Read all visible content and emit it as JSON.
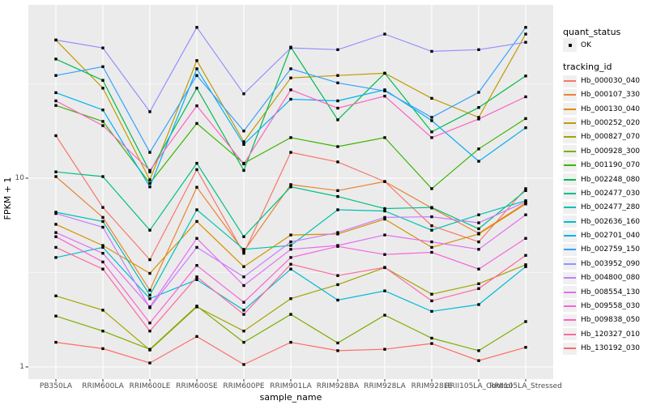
{
  "page": {
    "background": "#FFFFFF"
  },
  "panel": {
    "bg": "#EBEBEB",
    "grid_major": "#FFFFFF",
    "grid_minor": "#FFFFFF",
    "tick_color": "#333333",
    "tick_label_color": "#4D4D4D",
    "marker_color": "#000000",
    "legend_key_bg": "#F0F0F0"
  },
  "chart_data": {
    "type": "line",
    "title": "",
    "xlabel": "sample_name",
    "ylabel": "FPKM + 1",
    "y_scale": "log10",
    "y_major_ticks": [
      1,
      10
    ],
    "y_minor_gridlines": [
      3.162,
      31.62
    ],
    "ylim": [
      0.85,
      75
    ],
    "grid": true,
    "legend_position": "right",
    "x_categories": [
      "PB350LA",
      "RRIM600LA",
      "RRIM600LE",
      "RRIM600SE",
      "RRIM600PE",
      "RRIM901LA",
      "RRIM928BA",
      "RRIM928LA",
      "RRIM928LE",
      "RRII105LA_Control",
      "RRII105LA_Stressed"
    ],
    "legend": {
      "quant_status_title": "quant_status",
      "quant_status_items": [
        {
          "label": "OK",
          "marker": "black-point"
        }
      ],
      "tracking_title": "tracking_id"
    },
    "series": [
      {
        "name": "Hb_000030_040",
        "color": "#F8766D",
        "values": [
          16.8,
          7.0,
          3.7,
          11.1,
          4.0,
          13.7,
          12.2,
          9.6,
          5.6,
          4.6,
          8.8
        ]
      },
      {
        "name": "Hb_000107_330",
        "color": "#EA8331",
        "values": [
          10.2,
          6.2,
          2.55,
          8.95,
          4.1,
          9.25,
          8.6,
          9.6,
          6.95,
          5.1,
          7.4
        ]
      },
      {
        "name": "Hb_000130_040",
        "color": "#D89000",
        "values": [
          5.7,
          4.4,
          3.13,
          5.9,
          3.4,
          5.0,
          5.06,
          6.07,
          4.3,
          5.06,
          7.3
        ]
      },
      {
        "name": "Hb_000252_020",
        "color": "#C09B00",
        "values": [
          54,
          30,
          9.8,
          42,
          15.6,
          34,
          35,
          36,
          26.5,
          21,
          58
        ]
      },
      {
        "name": "Hb_000827_070",
        "color": "#A3A500",
        "values": [
          2.38,
          2.0,
          1.23,
          2.08,
          1.55,
          2.3,
          2.73,
          3.36,
          2.43,
          2.76,
          3.48
        ]
      },
      {
        "name": "Hb_000928_300",
        "color": "#7CAE00",
        "values": [
          1.86,
          1.55,
          1.24,
          2.1,
          1.35,
          1.9,
          1.34,
          1.88,
          1.42,
          1.22,
          1.74
        ]
      },
      {
        "name": "Hb_001190_070",
        "color": "#39B600",
        "values": [
          24.3,
          20,
          9.4,
          19.5,
          12,
          16.4,
          14.7,
          16.4,
          8.8,
          14.3,
          20.7
        ]
      },
      {
        "name": "Hb_002248_080",
        "color": "#00BB4E",
        "values": [
          42.8,
          33,
          10.8,
          30,
          11,
          49.5,
          20.4,
          36,
          17.6,
          23.7,
          34.8
        ]
      },
      {
        "name": "Hb_002477_030",
        "color": "#00C087",
        "values": [
          10.8,
          10.2,
          5.3,
          12.0,
          4.9,
          9.0,
          8.0,
          6.9,
          7.0,
          5.4,
          8.6
        ]
      },
      {
        "name": "Hb_002477_280",
        "color": "#00C0B2",
        "values": [
          6.6,
          5.9,
          2.4,
          6.8,
          4.2,
          4.4,
          6.8,
          6.7,
          5.3,
          6.4,
          7.6
        ]
      },
      {
        "name": "Hb_002636_160",
        "color": "#00BCD8",
        "values": [
          3.8,
          4.3,
          2.3,
          2.9,
          2.0,
          3.3,
          2.26,
          2.53,
          1.97,
          2.14,
          3.4
        ]
      },
      {
        "name": "Hb_002701_040",
        "color": "#00B0F6",
        "values": [
          28.4,
          23,
          9.0,
          38,
          15.1,
          26.2,
          25.7,
          29.4,
          20.2,
          12.3,
          18.5
        ]
      },
      {
        "name": "Hb_002759_150",
        "color": "#35A2FF",
        "values": [
          35,
          39,
          13.7,
          35,
          17.8,
          38,
          32,
          29,
          21,
          28.5,
          63
        ]
      },
      {
        "name": "Hb_003952_090",
        "color": "#9590FF",
        "values": [
          54,
          49,
          22.5,
          63,
          28,
          49,
          48,
          58,
          47,
          48,
          52.5
        ]
      },
      {
        "name": "Hb_004800_080",
        "color": "#C77CFF",
        "values": [
          6.5,
          5.5,
          2.06,
          4.3,
          3.0,
          4.6,
          5.15,
          6.2,
          6.25,
          5.8,
          7.5
        ]
      },
      {
        "name": "Hb_008554_130",
        "color": "#E76BF3",
        "values": [
          5.15,
          4.0,
          2.08,
          4.8,
          2.7,
          4.2,
          4.4,
          5.0,
          4.6,
          4.2,
          6.4
        ]
      },
      {
        "name": "Hb_009558_030",
        "color": "#FA62DB",
        "values": [
          4.9,
          3.6,
          1.71,
          3.45,
          2.2,
          3.8,
          4.35,
          3.94,
          4.05,
          3.3,
          4.8
        ]
      },
      {
        "name": "Hb_009838_050",
        "color": "#FF61C3",
        "values": [
          25.7,
          19,
          11.0,
          24.2,
          11.9,
          29.4,
          23.5,
          27.2,
          16.4,
          20.6,
          27.0
        ]
      },
      {
        "name": "Hb_120327_010",
        "color": "#FF689F",
        "values": [
          4.3,
          3.3,
          1.55,
          3.0,
          1.9,
          3.5,
          3.05,
          3.37,
          2.24,
          2.6,
          3.9
        ]
      },
      {
        "name": "Hb_130192_030",
        "color": "#FF6C67",
        "values": [
          1.35,
          1.25,
          1.05,
          1.45,
          1.03,
          1.35,
          1.22,
          1.24,
          1.33,
          1.08,
          1.27
        ]
      }
    ]
  }
}
